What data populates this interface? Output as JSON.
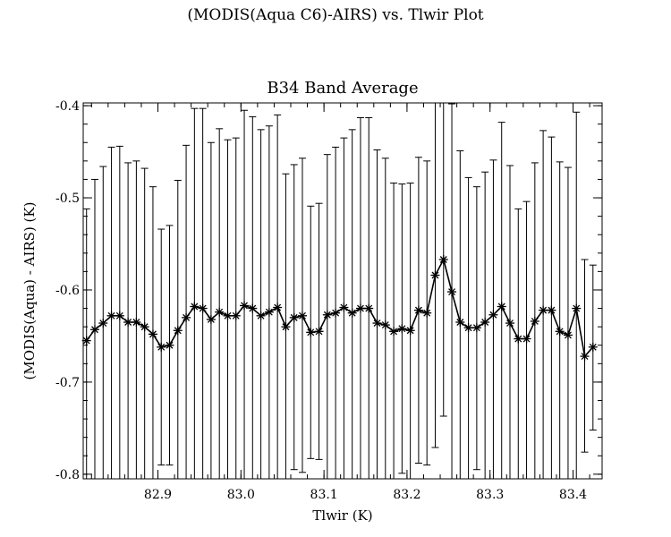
{
  "page": {
    "suptitle": "(MODIS(Aqua C6)-AIRS) vs. Tlwir Plot"
  },
  "chart_data": {
    "type": "line",
    "title": "B34 Band Average",
    "xlabel": "Tlwir (K)",
    "ylabel": "(MODIS(Aqua) - AIRS) (K)",
    "xlim": [
      82.81,
      83.435
    ],
    "ylim": [
      -0.805,
      -0.397
    ],
    "xticks": [
      82.9,
      83.0,
      83.1,
      83.2,
      83.3,
      83.4
    ],
    "xtick_labels": [
      "82.9",
      "83.0",
      "83.1",
      "83.2",
      "83.3",
      "83.4"
    ],
    "yticks": [
      -0.8,
      -0.7,
      -0.6,
      -0.5,
      -0.4
    ],
    "ytick_labels": [
      "-0.8",
      "-0.7",
      "-0.6",
      "-0.5",
      "-0.4"
    ],
    "grid": false,
    "marker": "asterisk",
    "color": "#000000",
    "series": [
      {
        "x": [
          82.814,
          82.824,
          82.834,
          82.844,
          82.854,
          82.864,
          82.874,
          82.884,
          82.894,
          82.904,
          82.914,
          82.924,
          82.934,
          82.944,
          82.954,
          82.964,
          82.974,
          82.984,
          82.994,
          83.004,
          83.014,
          83.024,
          83.034,
          83.044,
          83.054,
          83.064,
          83.074,
          83.084,
          83.094,
          83.104,
          83.114,
          83.124,
          83.134,
          83.144,
          83.154,
          83.164,
          83.174,
          83.184,
          83.194,
          83.204,
          83.214,
          83.224,
          83.234,
          83.244,
          83.254,
          83.264,
          83.274,
          83.284,
          83.294,
          83.304,
          83.314,
          83.324,
          83.334,
          83.344,
          83.354,
          83.364,
          83.374,
          83.384,
          83.394,
          83.404,
          83.414,
          83.424
        ],
        "y": [
          -0.655,
          -0.643,
          -0.636,
          -0.628,
          -0.628,
          -0.635,
          -0.635,
          -0.64,
          -0.648,
          -0.662,
          -0.66,
          -0.644,
          -0.63,
          -0.618,
          -0.62,
          -0.632,
          -0.624,
          -0.628,
          -0.628,
          -0.617,
          -0.62,
          -0.628,
          -0.624,
          -0.619,
          -0.64,
          -0.63,
          -0.628,
          -0.646,
          -0.645,
          -0.627,
          -0.625,
          -0.619,
          -0.625,
          -0.62,
          -0.62,
          -0.636,
          -0.638,
          -0.645,
          -0.642,
          -0.644,
          -0.622,
          -0.625,
          -0.584,
          -0.567,
          -0.602,
          -0.635,
          -0.641,
          -0.641,
          -0.635,
          -0.627,
          -0.618,
          -0.636,
          -0.653,
          -0.653,
          -0.634,
          -0.622,
          -0.622,
          -0.645,
          -0.649,
          -0.62,
          -0.672,
          -0.662
        ],
        "err_high": [
          -0.512,
          -0.48,
          -0.466,
          -0.445,
          -0.444,
          -0.462,
          -0.46,
          -0.468,
          -0.488,
          -0.534,
          -0.53,
          -0.481,
          -0.443,
          -0.403,
          -0.403,
          -0.44,
          -0.425,
          -0.437,
          -0.435,
          -0.405,
          -0.412,
          -0.426,
          -0.422,
          -0.41,
          -0.474,
          -0.464,
          -0.457,
          -0.509,
          -0.506,
          -0.453,
          -0.445,
          -0.435,
          -0.426,
          -0.413,
          -0.413,
          -0.448,
          -0.457,
          -0.484,
          -0.485,
          -0.484,
          -0.456,
          -0.46,
          -0.397,
          -0.397,
          -0.398,
          -0.449,
          -0.478,
          -0.488,
          -0.472,
          -0.459,
          -0.418,
          -0.465,
          -0.512,
          -0.504,
          -0.462,
          -0.427,
          -0.434,
          -0.461,
          -0.467,
          -0.407,
          -0.567,
          -0.573
        ],
        "err_low": [
          -0.805,
          -0.805,
          -0.805,
          -0.805,
          -0.805,
          -0.805,
          -0.805,
          -0.805,
          -0.805,
          -0.79,
          -0.79,
          -0.805,
          -0.805,
          -0.805,
          -0.805,
          -0.805,
          -0.805,
          -0.805,
          -0.805,
          -0.805,
          -0.805,
          -0.805,
          -0.805,
          -0.805,
          -0.805,
          -0.795,
          -0.798,
          -0.783,
          -0.784,
          -0.805,
          -0.805,
          -0.805,
          -0.805,
          -0.805,
          -0.805,
          -0.805,
          -0.805,
          -0.805,
          -0.799,
          -0.805,
          -0.788,
          -0.79,
          -0.771,
          -0.737,
          -0.805,
          -0.805,
          -0.805,
          -0.795,
          -0.805,
          -0.805,
          -0.805,
          -0.805,
          -0.805,
          -0.805,
          -0.805,
          -0.805,
          -0.805,
          -0.805,
          -0.805,
          -0.805,
          -0.776,
          -0.752
        ]
      }
    ]
  }
}
